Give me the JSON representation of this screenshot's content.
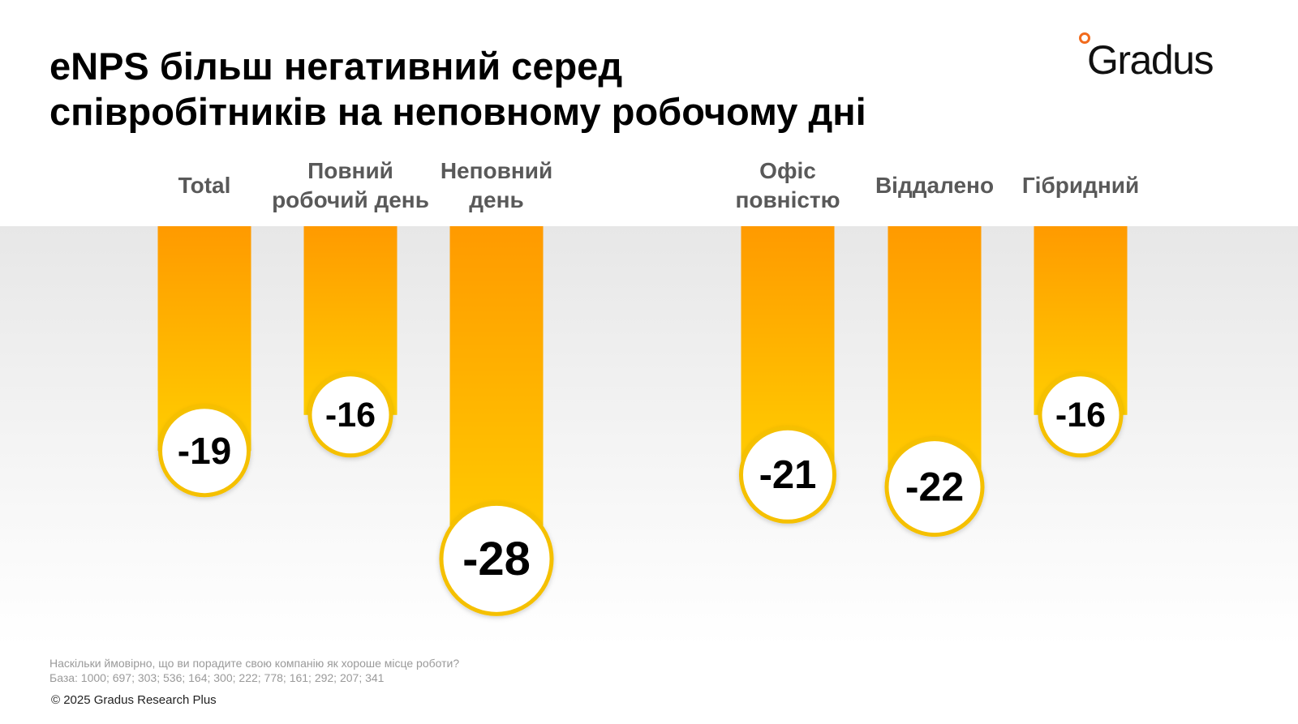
{
  "title": {
    "line1": "eNPS більш негативний серед",
    "line2": "співробітників на неповному робочому дні"
  },
  "logo": {
    "text": "Gradus",
    "icon": "orange-ring-icon",
    "accent": "#f26b1d"
  },
  "chart_data": {
    "type": "bar",
    "categories": [
      [
        "Total"
      ],
      [
        "Повний",
        "робочий день"
      ],
      [
        "Неповний",
        "день"
      ],
      [
        "Офіс",
        "повністю"
      ],
      [
        "Віддалено"
      ],
      [
        "Гібридний"
      ]
    ],
    "values": [
      -19,
      -16,
      -28,
      -21,
      -22,
      -16
    ],
    "value_labels": [
      "-19",
      "-16",
      "-28",
      "-21",
      "-22",
      "-16"
    ],
    "ylim": [
      -30,
      0
    ],
    "orientation": "bars hang downward from zero",
    "colors": {
      "bar_top": "#ff9a00",
      "bar_bottom": "#ffce00",
      "circle_border": "#f5c000",
      "label": "#595959"
    },
    "grid": false
  },
  "footnote": {
    "question": "Наскільки ймовірно, що ви порадите свою компанію як хороше місце роботи?",
    "base": "База: 1000; 697; 303; 536; 164; 300; 222; 778; 161; 292; 207; 341"
  },
  "copyright": "© 2025 Gradus Research Plus"
}
